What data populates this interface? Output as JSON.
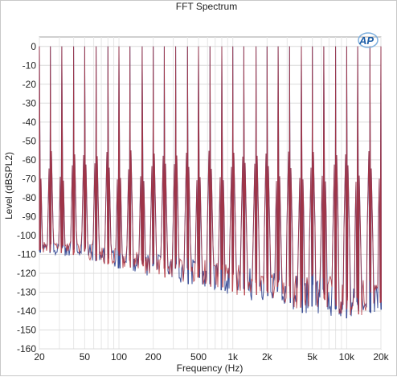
{
  "chart_data": {
    "type": "line",
    "title": "FFT Spectrum",
    "xlabel": "Frequency (Hz)",
    "ylabel": "Level (dBSPL2)",
    "x_scale": "log",
    "xlim": [
      20,
      20000
    ],
    "ylim": [
      -160,
      5
    ],
    "grid": true,
    "x_ticks": [
      20,
      50,
      100,
      200,
      500,
      1000,
      2000,
      5000,
      10000,
      20000
    ],
    "x_tick_labels": [
      "20",
      "50",
      "100",
      "200",
      "500",
      "1k",
      "2k",
      "5k",
      "10k",
      "20k"
    ],
    "y_ticks": [
      0,
      -10,
      -20,
      -30,
      -40,
      -50,
      -60,
      -70,
      -80,
      -90,
      -100,
      -110,
      -120,
      -130,
      -140,
      -150,
      -160
    ],
    "y_tick_labels": [
      "0",
      "-10",
      "-20",
      "-30",
      "-40",
      "-50",
      "-60",
      "-70",
      "-80",
      "-90",
      "-100",
      "-110",
      "-120",
      "-130",
      "-140",
      "-150",
      "-160"
    ],
    "series": [
      {
        "color": "#2a3f8f",
        "tone_frequencies": [
          20,
          25,
          31.5,
          40,
          50,
          63,
          80,
          100,
          125,
          160,
          200,
          250,
          315,
          400,
          500,
          630,
          800,
          1000,
          1250,
          1600,
          2000,
          2500,
          3150,
          4000,
          5000,
          6300,
          8000,
          10000,
          12500,
          16000,
          20000
        ],
        "tone_level": 0,
        "noise_floor": [
          [
            20,
            -107
          ],
          [
            50,
            -108
          ],
          [
            100,
            -113
          ],
          [
            200,
            -116
          ],
          [
            500,
            -120
          ],
          [
            1000,
            -124
          ],
          [
            2000,
            -128
          ],
          [
            5000,
            -132
          ],
          [
            10000,
            -134
          ],
          [
            20000,
            -136
          ]
        ]
      },
      {
        "color": "#b0303a",
        "tone_frequencies": [
          20,
          25,
          31.5,
          40,
          50,
          63,
          80,
          100,
          125,
          160,
          200,
          250,
          315,
          400,
          500,
          630,
          800,
          1000,
          1250,
          1600,
          2000,
          2500,
          3150,
          4000,
          5000,
          6300,
          8000,
          10000,
          12500,
          16000,
          20000
        ],
        "tone_level": 0,
        "noise_floor": [
          [
            20,
            -106
          ],
          [
            50,
            -108
          ],
          [
            100,
            -112
          ],
          [
            200,
            -115
          ],
          [
            500,
            -119
          ],
          [
            1000,
            -123
          ],
          [
            2000,
            -127
          ],
          [
            5000,
            -130
          ],
          [
            10000,
            -132
          ],
          [
            20000,
            -134
          ]
        ]
      }
    ],
    "logo": "AP"
  }
}
